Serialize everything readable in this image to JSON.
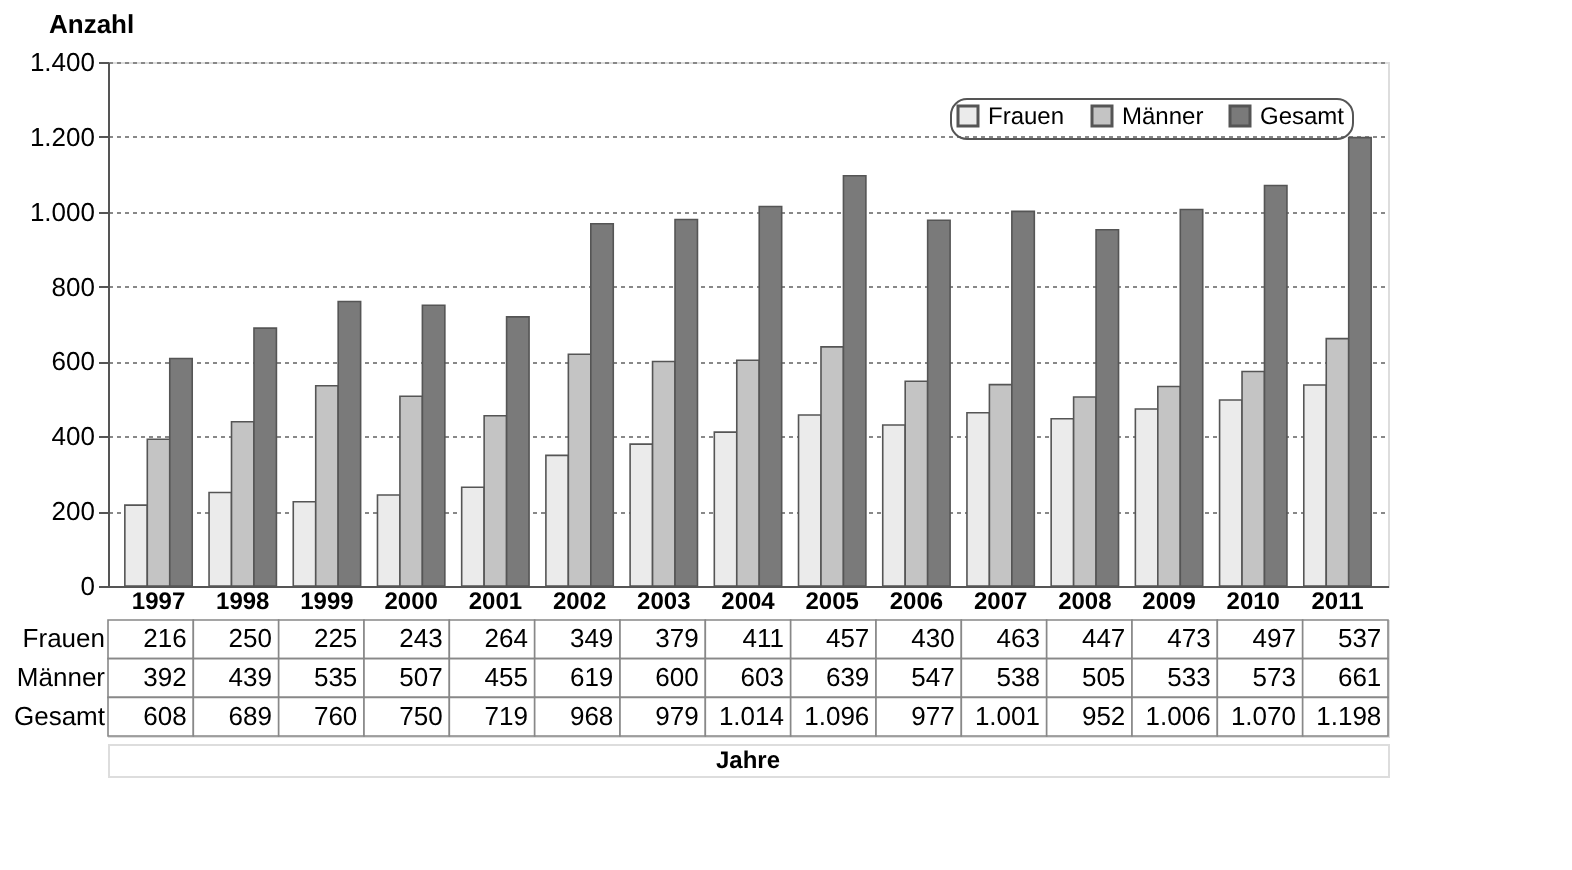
{
  "chart_data": {
    "type": "bar",
    "ylabel": "Anzahl",
    "annotations": [
      "Jahre"
    ],
    "categories": [
      "1997",
      "1998",
      "1999",
      "2000",
      "2001",
      "2002",
      "2003",
      "2004",
      "2005",
      "2006",
      "2007",
      "2008",
      "2009",
      "2010",
      "2011"
    ],
    "series": [
      {
        "name": "Frauen",
        "color": "#ebebeb",
        "values": [
          216,
          250,
          225,
          243,
          264,
          349,
          379,
          411,
          457,
          430,
          463,
          447,
          473,
          497,
          537
        ],
        "value_labels": [
          "216",
          "250",
          "225",
          "243",
          "264",
          "349",
          "379",
          "411",
          "457",
          "430",
          "463",
          "447",
          "473",
          "497",
          "537"
        ]
      },
      {
        "name": "Männer",
        "color": "#c4c4c4",
        "values": [
          392,
          439,
          535,
          507,
          455,
          619,
          600,
          603,
          639,
          547,
          538,
          505,
          533,
          573,
          661
        ],
        "value_labels": [
          "392",
          "439",
          "535",
          "507",
          "455",
          "619",
          "600",
          "603",
          "639",
          "547",
          "538",
          "505",
          "533",
          "573",
          "661"
        ]
      },
      {
        "name": "Gesamt",
        "color": "#7a7a7a",
        "values": [
          608,
          689,
          760,
          750,
          719,
          968,
          979,
          1014,
          1096,
          977,
          1001,
          952,
          1006,
          1070,
          1198
        ],
        "value_labels": [
          "608",
          "689",
          "760",
          "750",
          "719",
          "968",
          "979",
          "1.014",
          "1.096",
          "977",
          "1.001",
          "952",
          "1.006",
          "1.070",
          "1.198"
        ]
      }
    ],
    "ylim": [
      0,
      1400
    ],
    "yticks": [
      0,
      200,
      400,
      600,
      800,
      {
        "value": 1000,
        "label": "1.000"
      },
      {
        "value": 1200,
        "label": "1.200"
      },
      {
        "value": 1400,
        "label": "1.400"
      }
    ],
    "grid": "y",
    "legend": "top right"
  }
}
